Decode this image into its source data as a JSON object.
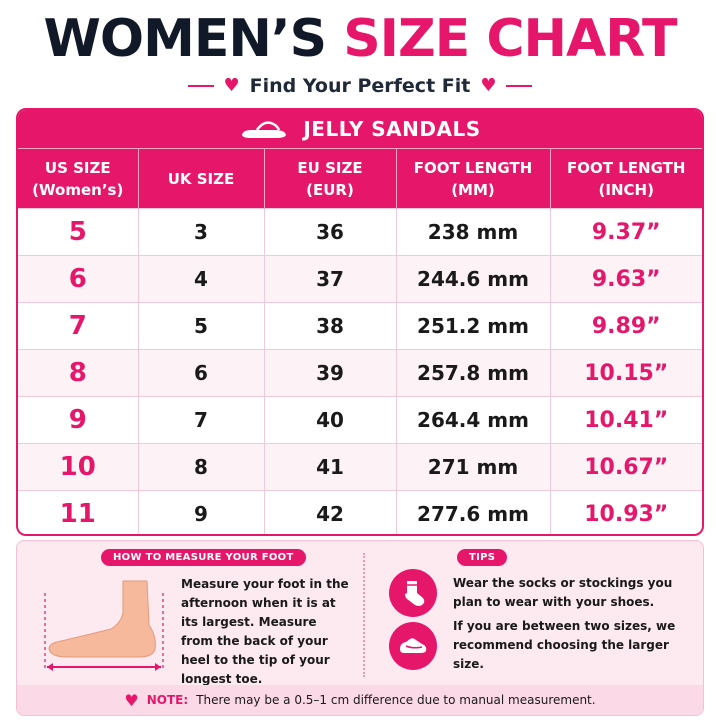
{
  "header": {
    "title_part1": "WOMEN’S",
    "title_part2": "SIZE CHART",
    "subtitle": "Find Your Perfect Fit"
  },
  "table": {
    "banner": "JELLY SANDALS",
    "columns": [
      {
        "line1": "US SIZE",
        "line2": "(Women’s)"
      },
      {
        "line1": "UK SIZE",
        "line2": ""
      },
      {
        "line1": "EU SIZE",
        "line2": "(EUR)"
      },
      {
        "line1": "FOOT LENGTH",
        "line2": "(MM)"
      },
      {
        "line1": "FOOT LENGTH",
        "line2": "(INCH)"
      }
    ],
    "rows": [
      [
        "5",
        "3",
        "36",
        "238 mm",
        "9.37”"
      ],
      [
        "6",
        "4",
        "37",
        "244.6 mm",
        "9.63”"
      ],
      [
        "7",
        "5",
        "38",
        "251.2 mm",
        "9.89”"
      ],
      [
        "8",
        "6",
        "39",
        "257.8 mm",
        "10.15”"
      ],
      [
        "9",
        "7",
        "40",
        "264.4 mm",
        "10.41”"
      ],
      [
        "10",
        "8",
        "41",
        "271 mm",
        "10.67”"
      ],
      [
        "11",
        "9",
        "42",
        "277.6 mm",
        "10.93”"
      ]
    ]
  },
  "measure": {
    "label": "HOW TO MEASURE YOUR FOOT",
    "text": "Measure your foot in the afternoon when it is at its largest. Measure from the back of your heel to the tip of your longest toe."
  },
  "tips": {
    "label": "TIPS",
    "tip1": "Wear the socks or stockings you plan to wear with your shoes.",
    "tip2": "If you are between two sizes, we recommend choosing the larger size."
  },
  "note": {
    "label": "NOTE:",
    "text": "There may be a 0.5–1 cm difference due to manual measurement."
  },
  "colors": {
    "accent": "#e6176b",
    "dark": "#111827",
    "panel": "#fde9f0"
  },
  "icons": [
    "heart-icon",
    "sandal-icon",
    "foot-icon",
    "sock-icon",
    "shoe-icon"
  ]
}
